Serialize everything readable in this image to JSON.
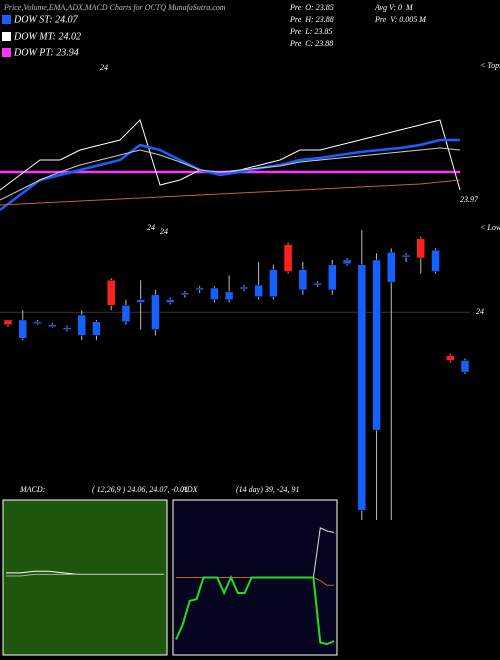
{
  "header": {
    "title": "Price,Volume,EMA,ADX,MACD Charts for OCTQ MunafaSutra.com",
    "legend": [
      {
        "label": "DOW ST: 24.07",
        "color": "#1560ff"
      },
      {
        "label": "DOW MT: 24.02",
        "color": "#ffffff"
      },
      {
        "label": "DOW PT: 23.94",
        "color": "#ff33ff"
      }
    ],
    "stats": [
      "Pre  O: 23.85",
      "Pre  H: 23.88",
      "Pre  L: 23.85",
      "Pre  C: 23.88",
      "Avg V: 0  M",
      "Pre  V: 0.005 M"
    ]
  },
  "chart_data": [
    {
      "type": "line",
      "annotations": [
        "24",
        "< Tops",
        "23.97"
      ],
      "categories": [
        null,
        null,
        null,
        null,
        null,
        null,
        null,
        null,
        null,
        null,
        null,
        null,
        null,
        null,
        null,
        null,
        null,
        null,
        null,
        null,
        null,
        null,
        null,
        null
      ],
      "ylim": [
        23.854,
        24.104
      ],
      "hlines": [
        {
          "value": 23.94,
          "color": "#ff33ff"
        }
      ],
      "series": [
        {
          "color": "#ffffff",
          "width": 1,
          "values": [
            23.904,
            23.934,
            23.964,
            23.964,
            23.984,
            23.994,
            24.004,
            24.044,
            23.914,
            23.924,
            23.944,
            23.934,
            23.944,
            23.954,
            23.964,
            23.984,
            23.984,
            23.994,
            24.004,
            24.014,
            24.024,
            24.034,
            24.044,
            23.904
          ]
        },
        {
          "color": "#1560ff",
          "width": 2.5,
          "values": [
            23.864,
            23.894,
            23.924,
            23.934,
            23.944,
            23.954,
            23.964,
            23.994,
            23.984,
            23.964,
            23.944,
            23.934,
            23.94,
            23.948,
            23.954,
            23.964,
            23.968,
            23.974,
            23.98,
            23.984,
            23.988,
            23.994,
            24.004,
            24.004
          ]
        },
        {
          "color": "#cccccc",
          "width": 1,
          "values": [
            23.884,
            23.904,
            23.924,
            23.94,
            23.954,
            23.964,
            23.974,
            23.984,
            23.974,
            23.96,
            23.944,
            23.94,
            23.944,
            23.948,
            23.952,
            23.96,
            23.964,
            23.968,
            23.972,
            23.976,
            23.98,
            23.984,
            23.988,
            23.984
          ]
        },
        {
          "color": "#c8641e",
          "width": 1,
          "values": [
            23.874,
            23.876,
            23.878,
            23.88,
            23.882,
            23.884,
            23.886,
            23.888,
            23.89,
            23.892,
            23.894,
            23.896,
            23.898,
            23.9,
            23.902,
            23.904,
            23.906,
            23.908,
            23.91,
            23.912,
            23.914,
            23.916,
            23.92,
            23.924
          ]
        }
      ]
    },
    {
      "type": "candlestick",
      "annotations": [
        "24",
        "24",
        "< Lows"
      ],
      "ylim": [
        23.785,
        24.085
      ],
      "yticks": [
        24
      ],
      "grid": true,
      "up_color": "#ff2020",
      "down_color": "#1560ff",
      "open": [
        23.987,
        23.992,
        23.99,
        23.987,
        23.984,
        23.997,
        23.99,
        24.007,
        24.007,
        24.013,
        24.018,
        24.013,
        24.02,
        24.025,
        24.025,
        24.021,
        24.026,
        24.028,
        24.044,
        24.042,
        24.044,
        24.03,
        24.049,
        24.054,
        24.049,
        24.054,
        24.062,
        24.059,
        24.056,
        24.064,
        23.95,
        23.95
      ],
      "high": [
        23.992,
        24.002,
        23.992,
        23.989,
        23.986,
        24.002,
        23.992,
        24.035,
        24.013,
        24.033,
        24.023,
        24.015,
        24.022,
        24.027,
        24.027,
        24.038,
        24.028,
        24.052,
        24.049,
        24.072,
        24.052,
        24.032,
        24.054,
        24.056,
        24.085,
        24.061,
        24.066,
        24.061,
        24.078,
        24.066,
        23.957,
        23.952
      ],
      "low": [
        23.985,
        23.971,
        23.987,
        23.984,
        23.98,
        23.971,
        23.971,
        24.002,
        23.987,
        23.982,
        23.976,
        24.008,
        24.015,
        24.02,
        24.01,
        24.01,
        24.022,
        24.013,
        24.013,
        24.04,
        24.018,
        24.026,
        24.018,
        24.048,
        23.785,
        23.785,
        23.785,
        24.052,
        24.04,
        24.04,
        23.948,
        23.936
      ],
      "close": [
        23.992,
        23.973,
        23.988,
        23.985,
        23.982,
        23.976,
        23.976,
        24.033,
        23.99,
        24.01,
        23.982,
        24.01,
        24.018,
        24.023,
        24.013,
        24.013,
        24.024,
        24.016,
        24.016,
        24.07,
        24.023,
        24.028,
        24.023,
        24.05,
        23.795,
        23.878,
        24.031,
        24.057,
        24.076,
        24.042,
        23.955,
        23.938
      ]
    },
    {
      "type": "line",
      "title": "MACD:",
      "subtitle": "( 12,26,9 ) 24.06, 24.07, -0.01",
      "background": "#1d560c",
      "categories": [
        null,
        null,
        null,
        null,
        null,
        null,
        null,
        null,
        null,
        null,
        null,
        null
      ],
      "ylim": [
        -0.5,
        0.5
      ],
      "series": [
        {
          "color": "#ffffff",
          "width": 1,
          "values": [
            0.03,
            0.03,
            0.04,
            0.04,
            0.03,
            0.02,
            0.02,
            0.02,
            0.02,
            0.02,
            0.02,
            0.02
          ]
        },
        {
          "color": "#aaaaaa",
          "width": 1,
          "values": [
            0.01,
            0.01,
            0.02,
            0.02,
            0.02,
            0.02,
            0.02,
            0.02,
            0.02,
            0.02,
            0.02,
            0.02
          ]
        }
      ]
    },
    {
      "type": "line",
      "title": "ADX",
      "subtitle": "(14 day) 39, -24, 91",
      "background": "#050520",
      "categories": [
        null,
        null,
        null,
        null,
        null,
        null,
        null,
        null,
        null,
        null,
        null,
        null,
        null,
        null,
        null,
        null,
        null,
        null,
        null,
        null,
        null,
        null,
        null,
        null
      ],
      "ylim": [
        0,
        100
      ],
      "series": [
        {
          "color": "#dddddd",
          "width": 1,
          "values": [
            50,
            50,
            50,
            50,
            50,
            50,
            50,
            50,
            50,
            50,
            50,
            50,
            50,
            50,
            50,
            50,
            50,
            50,
            50,
            50,
            50,
            82,
            80,
            79
          ]
        },
        {
          "color": "#c8641e",
          "width": 1,
          "values": [
            50,
            50,
            50,
            50,
            50,
            50,
            50,
            50,
            50,
            50,
            50,
            50,
            50,
            50,
            50,
            50,
            50,
            50,
            50,
            50,
            50,
            48,
            45,
            45
          ]
        },
        {
          "color": "#22dd22",
          "width": 2,
          "values": [
            10,
            20,
            35,
            36,
            50,
            50,
            50,
            40,
            50,
            40,
            40,
            50,
            50,
            50,
            50,
            50,
            50,
            50,
            50,
            50,
            50,
            8,
            7,
            9
          ]
        }
      ]
    }
  ]
}
